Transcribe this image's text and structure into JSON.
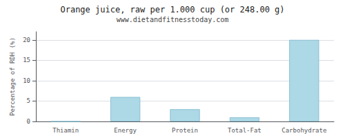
{
  "chart_data": {
    "type": "bar",
    "title": "Orange juice, raw per 1.000 cup (or 248.00 g)",
    "subtitle": "www.dietandfitnesstoday.com",
    "categories": [
      "Thiamin",
      "Energy",
      "Protein",
      "Total-Fat",
      "Carbohydrate"
    ],
    "values": [
      0,
      6,
      3,
      1,
      20
    ],
    "color": "#add8e6",
    "ylabel": "Percentage of RDH (%)",
    "ylim": [
      0,
      22
    ],
    "yticks": [
      0,
      5,
      10,
      15,
      20
    ],
    "grid": true
  }
}
